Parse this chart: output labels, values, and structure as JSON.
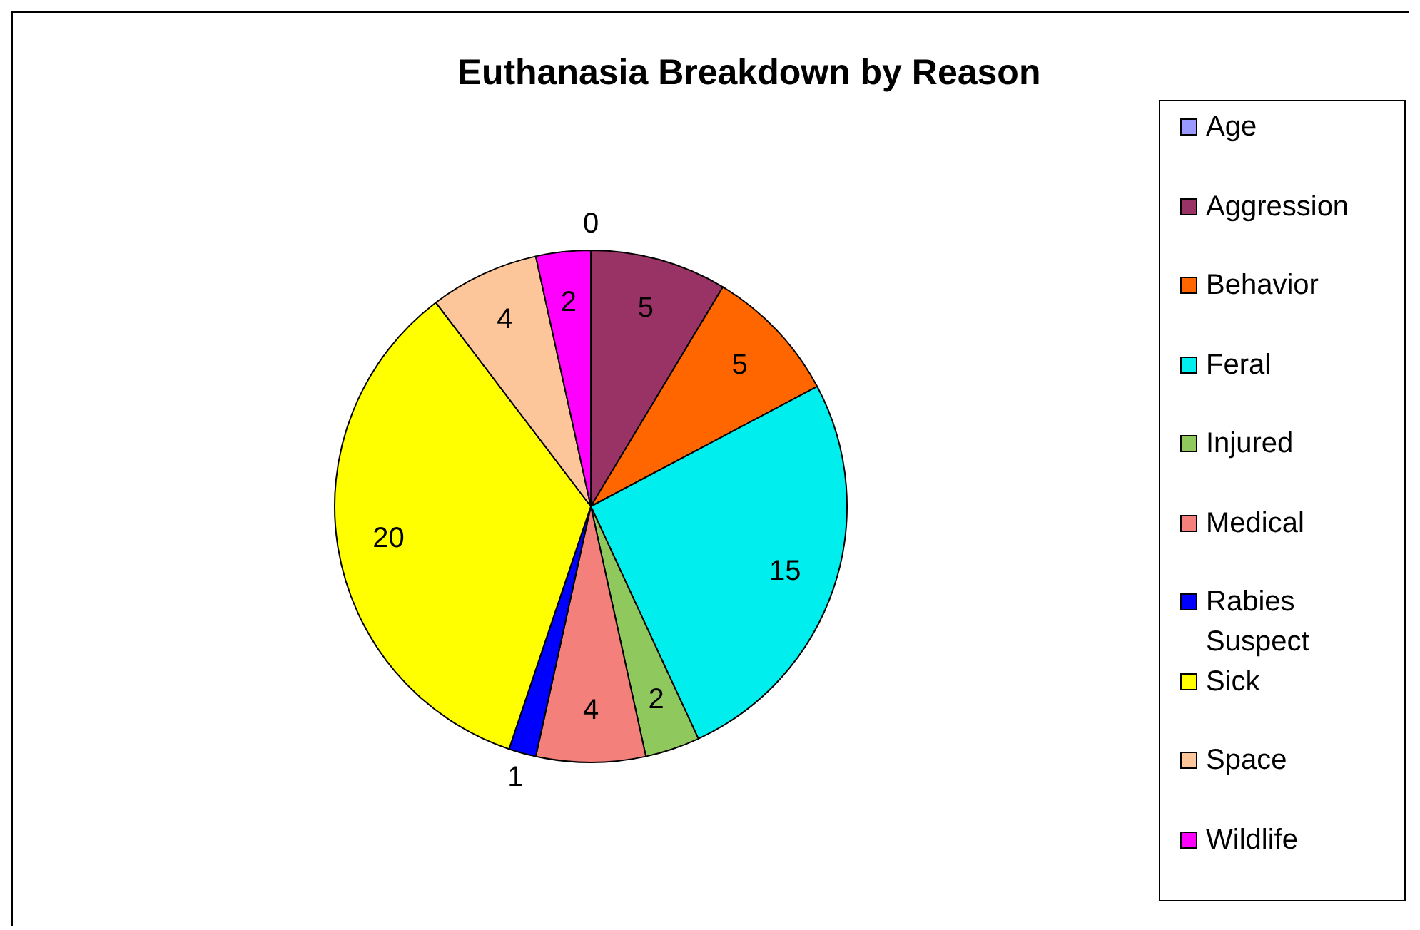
{
  "chart_data": {
    "type": "pie",
    "title": "Euthanasia Breakdown by Reason",
    "categories": [
      "Age",
      "Aggression",
      "Behavior",
      "Feral",
      "Injured",
      "Medical",
      "Rabies Suspect",
      "Sick",
      "Space",
      "Wildlife"
    ],
    "values": [
      0,
      5,
      5,
      15,
      2,
      4,
      1,
      20,
      4,
      2
    ],
    "value_labels": [
      "0",
      "5",
      "5",
      "15",
      "2",
      "4",
      "1",
      "20",
      "4",
      "2"
    ],
    "colors": [
      "#9999ff",
      "#993366",
      "#ff6600",
      "#00eeee",
      "#8fc85c",
      "#f4807c",
      "#0000ff",
      "#ffff00",
      "#fcc69a",
      "#ff00ff"
    ],
    "legend": "right"
  }
}
